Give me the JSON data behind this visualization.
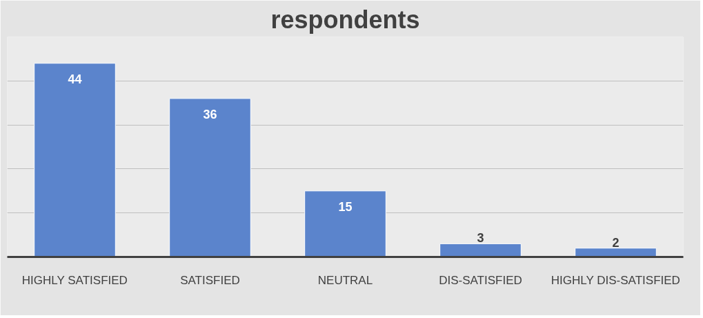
{
  "chart_data": {
    "type": "bar",
    "title": "respondents",
    "categories": [
      "HIGHLY SATISFIED",
      "SATISFIED",
      "NEUTRAL",
      "DIS-SATISFIED",
      "HIGHLY DIS-SATISFIED"
    ],
    "values": [
      44,
      36,
      15,
      3,
      2
    ],
    "color": "#5b84cc",
    "ylim": [
      0,
      50
    ],
    "yticks": [
      0,
      10,
      20,
      30,
      40
    ],
    "grid": "y",
    "tick_labels": "x",
    "data_labels": true
  }
}
